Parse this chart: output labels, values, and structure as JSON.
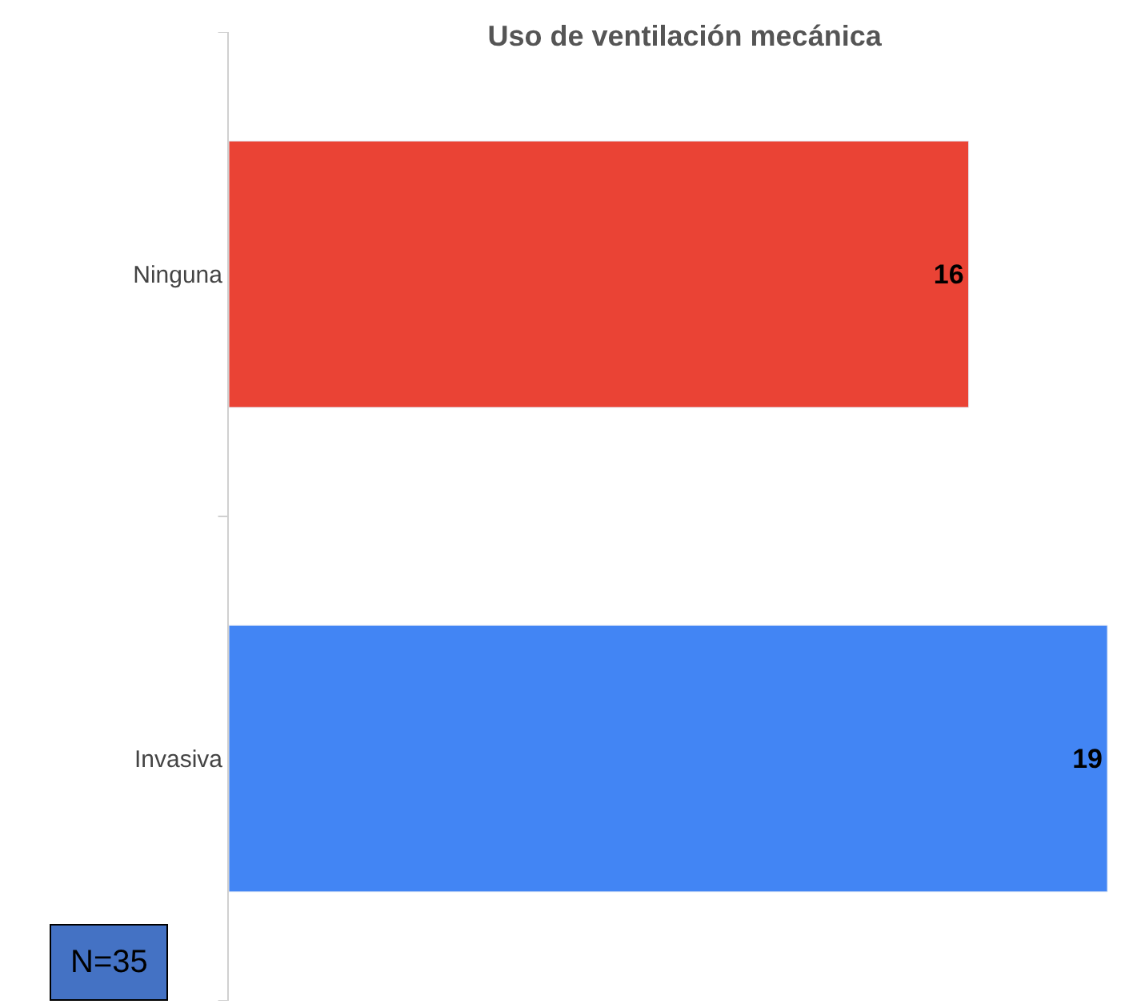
{
  "chart_data": {
    "type": "bar",
    "orientation": "horizontal",
    "title": "Uso de ventilación mecánica",
    "categories": [
      "Ninguna",
      "Invasiva"
    ],
    "values": [
      16,
      19
    ],
    "colors": [
      "#ea4335",
      "#4285f4"
    ],
    "data_labels": true,
    "legend": false,
    "annotations": [
      "N=35"
    ]
  }
}
